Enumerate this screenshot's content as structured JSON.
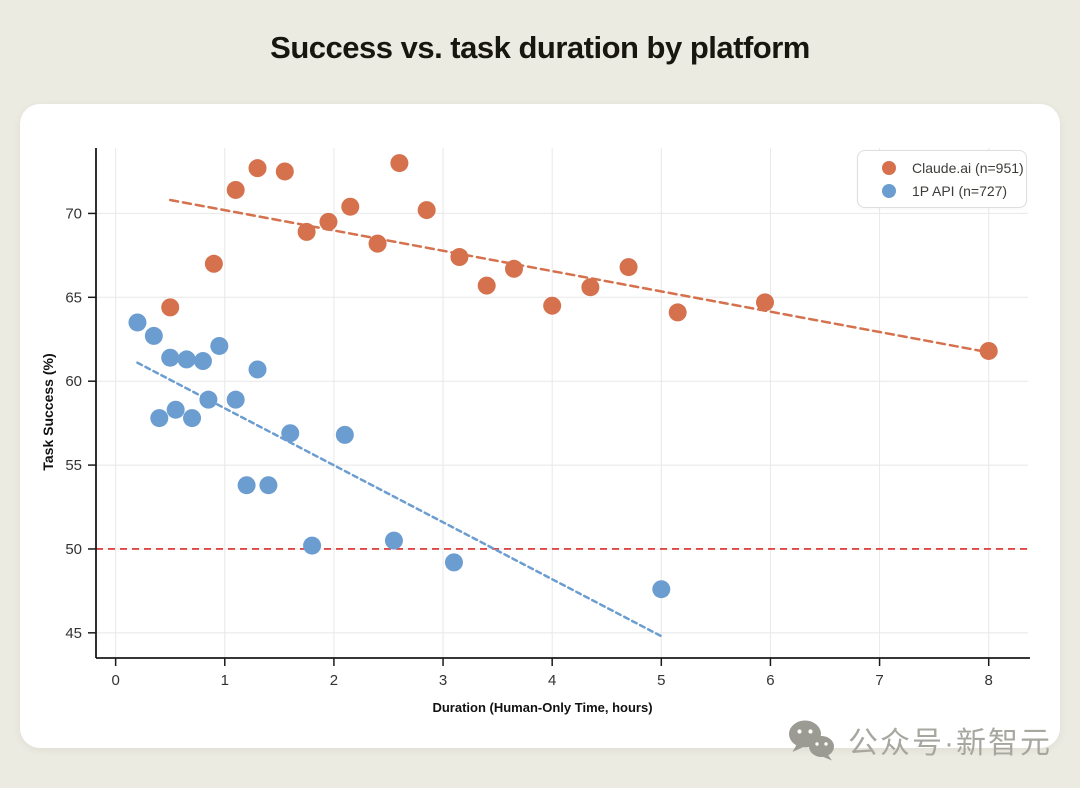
{
  "page": {
    "title": "Success vs. task duration by platform",
    "watermark_text": "公众号·新智元",
    "background": "#ECEBE1",
    "card_background": "#FFFFFF"
  },
  "chart_data": {
    "type": "scatter",
    "title": "Success vs. task duration by platform",
    "xlabel": "Duration (Human-Only Time, hours)",
    "ylabel": "Task Success (%)",
    "xlim": [
      -0.18,
      8.36
    ],
    "ylim": [
      43.5,
      73.9
    ],
    "x_ticks": [
      0,
      1,
      2,
      3,
      4,
      5,
      6,
      7,
      8
    ],
    "y_ticks": [
      45,
      50,
      55,
      60,
      65,
      70
    ],
    "grid": true,
    "grid_color": "#E8E8E8",
    "axis_color": "#1A1A1A",
    "tick_label_color": "#333333",
    "legend_position": "top-right",
    "baseline": {
      "y": 50,
      "color": "#DF4747",
      "style": "dashed"
    },
    "series": [
      {
        "name": "Claude.ai (n=951)",
        "color": "#D5714D",
        "marker_radius": 9,
        "points": [
          [
            0.5,
            64.4
          ],
          [
            0.9,
            67.0
          ],
          [
            1.1,
            71.4
          ],
          [
            1.3,
            72.7
          ],
          [
            1.55,
            72.5
          ],
          [
            1.75,
            68.9
          ],
          [
            1.95,
            69.5
          ],
          [
            2.15,
            70.4
          ],
          [
            2.4,
            68.2
          ],
          [
            2.6,
            73.0
          ],
          [
            2.85,
            70.2
          ],
          [
            3.15,
            67.4
          ],
          [
            3.4,
            65.7
          ],
          [
            3.65,
            66.7
          ],
          [
            4.0,
            64.5
          ],
          [
            4.35,
            65.6
          ],
          [
            4.7,
            66.8
          ],
          [
            5.15,
            64.1
          ],
          [
            5.95,
            64.7
          ],
          [
            8.0,
            61.8
          ]
        ],
        "trendline": {
          "x1": 0.5,
          "y1": 70.8,
          "x2": 8.1,
          "y2": 61.6,
          "dash": "8 5"
        }
      },
      {
        "name": "1P API (n=727)",
        "color": "#6C9DD1",
        "marker_radius": 9,
        "points": [
          [
            0.2,
            63.5
          ],
          [
            0.35,
            62.7
          ],
          [
            0.4,
            57.8
          ],
          [
            0.5,
            61.4
          ],
          [
            0.55,
            58.3
          ],
          [
            0.65,
            61.3
          ],
          [
            0.7,
            57.8
          ],
          [
            0.8,
            61.2
          ],
          [
            0.85,
            58.9
          ],
          [
            0.95,
            62.1
          ],
          [
            1.1,
            58.9
          ],
          [
            1.2,
            53.8
          ],
          [
            1.3,
            60.7
          ],
          [
            1.4,
            53.8
          ],
          [
            1.6,
            56.9
          ],
          [
            1.8,
            50.2
          ],
          [
            2.1,
            56.8
          ],
          [
            2.55,
            50.5
          ],
          [
            3.1,
            49.2
          ],
          [
            5.0,
            47.6
          ]
        ],
        "trendline": {
          "x1": 0.2,
          "y1": 61.1,
          "x2": 5.0,
          "y2": 44.8,
          "dash": "5 4"
        }
      }
    ]
  }
}
